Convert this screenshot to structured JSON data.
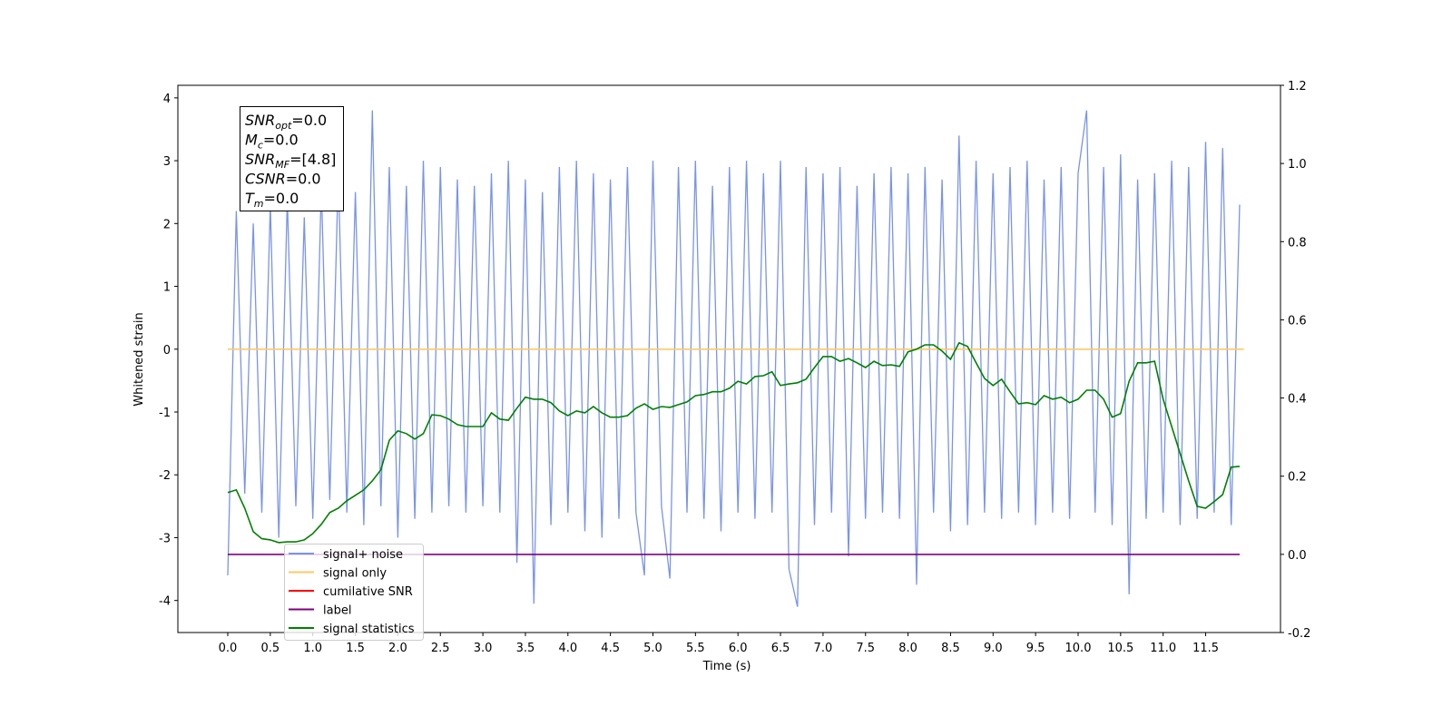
{
  "chart_data": {
    "type": "line",
    "xlabel": "Time (s)",
    "ylabel": "Whitened strain",
    "xlim": [
      -0.587,
      12.38
    ],
    "ylim": [
      -4.51,
      4.2
    ],
    "y2lim": [
      -0.2,
      1.2
    ],
    "xticks": [
      {
        "value": 0,
        "label": "0.0"
      },
      0.5,
      {
        "value": 1,
        "label": "1.0"
      },
      1.5,
      {
        "value": 2,
        "label": "2.0"
      },
      2.5,
      {
        "value": 3,
        "label": "3.0"
      },
      3.5,
      {
        "value": 4,
        "label": "4.0"
      },
      4.5,
      {
        "value": 5,
        "label": "5.0"
      },
      5.5,
      {
        "value": 6,
        "label": "6.0"
      },
      6.5,
      {
        "value": 7,
        "label": "7.0"
      },
      7.5,
      {
        "value": 8,
        "label": "8.0"
      },
      8.5,
      {
        "value": 9,
        "label": "9.0"
      },
      9.5,
      {
        "value": 10,
        "label": "10.0"
      },
      10.5,
      {
        "value": 11,
        "label": "11.0"
      },
      11.5
    ],
    "yticks": [
      -4,
      -3,
      -2,
      -1,
      0,
      1,
      2,
      3,
      4
    ],
    "y2ticks": [
      -0.2,
      {
        "value": 0,
        "label": "0.0"
      },
      0.2,
      0.4,
      0.6,
      0.8,
      {
        "value": 1,
        "label": "1.0"
      },
      1.2
    ],
    "annotation": [
      {
        "base": "SNR",
        "sub": "opt",
        "text": "=0.0"
      },
      {
        "base": "M",
        "sub": "c",
        "text": "=0.0"
      },
      {
        "base": "SNR",
        "sub": "MF",
        "text": "=[4.8]"
      },
      {
        "base": "CSNR",
        "text": "=0.0"
      },
      {
        "base": "T",
        "sub": "m",
        "text": "=0.0"
      }
    ],
    "legend": "lower left",
    "x": [
      0,
      0.1,
      0.2,
      0.3,
      0.4,
      0.5,
      0.6,
      0.7,
      0.8,
      0.9,
      1,
      1.1,
      1.2,
      1.3,
      1.4,
      1.5,
      1.6,
      1.7,
      1.8,
      1.9,
      2,
      2.1,
      2.2,
      2.3,
      2.4,
      2.5,
      2.6,
      2.7,
      2.8,
      2.9,
      3,
      3.1,
      3.2,
      3.3,
      3.4,
      3.5,
      3.6,
      3.7,
      3.8,
      3.9,
      4,
      4.1,
      4.2,
      4.3,
      4.4,
      4.5,
      4.6,
      4.7,
      4.8,
      4.9,
      5,
      5.1,
      5.2,
      5.3,
      5.4,
      5.5,
      5.6,
      5.7,
      5.8,
      5.9,
      6,
      6.1,
      6.2,
      6.3,
      6.4,
      6.5,
      6.6,
      6.7,
      6.8,
      6.9,
      7,
      7.1,
      7.2,
      7.3,
      7.4,
      7.5,
      7.6,
      7.7,
      7.8,
      7.9,
      8,
      8.1,
      8.2,
      8.3,
      8.4,
      8.5,
      8.6,
      8.7,
      8.8,
      8.9,
      9,
      9.1,
      9.2,
      9.3,
      9.4,
      9.5,
      9.6,
      9.7,
      9.8,
      9.9,
      10,
      10.1,
      10.2,
      10.3,
      10.4,
      10.5,
      10.6,
      10.7,
      10.8,
      10.9,
      11,
      11.1,
      11.2,
      11.3,
      11.4,
      11.5,
      11.6,
      11.7,
      11.8,
      11.9
    ],
    "series": [
      {
        "name": "signal+ noise",
        "color": "#7994e8",
        "axis": "y",
        "values": [
          -3.6,
          2.2,
          -2.3,
          2.0,
          -2.6,
          2.3,
          -3.0,
          2.4,
          -2.5,
          2.1,
          -2.7,
          2.6,
          -2.4,
          2.8,
          -2.6,
          2.5,
          -2.8,
          3.8,
          -2.5,
          2.9,
          -3.0,
          2.6,
          -2.7,
          3.0,
          -2.6,
          2.9,
          -2.5,
          2.7,
          -2.6,
          2.6,
          -2.5,
          2.8,
          -2.6,
          3.0,
          -3.4,
          2.7,
          -4.05,
          2.5,
          -2.8,
          2.9,
          -2.6,
          3.0,
          -2.9,
          2.8,
          -3.0,
          2.7,
          -2.7,
          2.9,
          -2.6,
          -3.6,
          3.0,
          -2.5,
          -3.65,
          2.9,
          -2.6,
          3.0,
          -2.7,
          2.6,
          -2.9,
          2.9,
          -2.6,
          3.0,
          -2.7,
          2.8,
          -2.6,
          3.0,
          -3.5,
          -4.1,
          2.9,
          -2.8,
          2.8,
          -2.6,
          2.9,
          -3.3,
          2.6,
          -2.7,
          2.8,
          -2.6,
          2.9,
          -2.7,
          2.8,
          -3.75,
          2.9,
          -2.6,
          2.7,
          -2.9,
          3.4,
          -2.8,
          3.0,
          -2.6,
          2.8,
          -2.7,
          2.9,
          -2.6,
          3.0,
          -2.8,
          2.7,
          -2.6,
          2.9,
          -2.7,
          2.8,
          3.8,
          -2.6,
          2.9,
          -2.8,
          3.1,
          -3.9,
          2.7,
          -2.7,
          2.8,
          -2.6,
          3.0,
          -2.8,
          2.9,
          -2.7,
          3.3,
          -2.6,
          3.2,
          -2.8,
          2.3
        ]
      },
      {
        "name": "signal only",
        "color": "#ffc966",
        "axis": "y",
        "x": [
          0,
          11.95
        ],
        "values": [
          0,
          0
        ]
      },
      {
        "name": "cumilative SNR",
        "color": "#ff0000",
        "axis": "y2",
        "x": [],
        "values": []
      },
      {
        "name": "label",
        "color": "#800080",
        "axis": "y2",
        "x": [
          0,
          11.9
        ],
        "values": [
          0,
          0
        ]
      },
      {
        "name": "signal statistics",
        "color": "#008000",
        "axis": "y2",
        "values": [
          0.158,
          0.165,
          0.118,
          0.058,
          0.04,
          0.037,
          0.03,
          0.032,
          0.032,
          0.037,
          0.053,
          0.077,
          0.107,
          0.118,
          0.137,
          0.151,
          0.165,
          0.188,
          0.216,
          0.292,
          0.316,
          0.309,
          0.295,
          0.309,
          0.357,
          0.355,
          0.346,
          0.332,
          0.327,
          0.327,
          0.327,
          0.362,
          0.346,
          0.343,
          0.374,
          0.402,
          0.397,
          0.397,
          0.388,
          0.367,
          0.355,
          0.367,
          0.362,
          0.378,
          0.362,
          0.351,
          0.351,
          0.355,
          0.374,
          0.385,
          0.371,
          0.378,
          0.376,
          0.383,
          0.39,
          0.406,
          0.409,
          0.416,
          0.416,
          0.425,
          0.443,
          0.436,
          0.455,
          0.457,
          0.467,
          0.432,
          0.436,
          0.439,
          0.448,
          0.478,
          0.506,
          0.506,
          0.494,
          0.501,
          0.49,
          0.478,
          0.494,
          0.483,
          0.485,
          0.481,
          0.518,
          0.525,
          0.536,
          0.536,
          0.52,
          0.499,
          0.541,
          0.532,
          0.49,
          0.45,
          0.432,
          0.448,
          0.416,
          0.385,
          0.388,
          0.383,
          0.406,
          0.397,
          0.402,
          0.388,
          0.397,
          0.42,
          0.42,
          0.397,
          0.351,
          0.36,
          0.443,
          0.49,
          0.49,
          0.494,
          0.397,
          0.327,
          0.258,
          0.188,
          0.123,
          0.118,
          0.135,
          0.153,
          0.223,
          0.225
        ]
      }
    ]
  }
}
